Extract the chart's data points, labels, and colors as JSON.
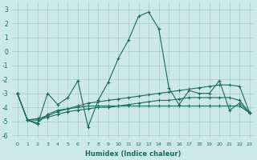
{
  "x": [
    0,
    1,
    2,
    3,
    4,
    5,
    6,
    7,
    8,
    9,
    10,
    11,
    12,
    13,
    14,
    15,
    16,
    17,
    18,
    19,
    20,
    21,
    22,
    23
  ],
  "line1": [
    -3.0,
    -4.9,
    -5.2,
    -3.0,
    -3.8,
    -3.3,
    -2.1,
    -5.4,
    -3.5,
    -2.2,
    -0.5,
    0.8,
    2.5,
    2.8,
    1.6,
    -2.6,
    -3.8,
    -2.8,
    -3.0,
    -3.0,
    -2.1,
    -4.2,
    -3.7,
    -4.4
  ],
  "line2": [
    -3.0,
    -4.9,
    -5.1,
    -4.5,
    -4.2,
    -4.1,
    -4.0,
    -3.9,
    -3.9,
    -3.9,
    -3.9,
    -3.9,
    -3.9,
    -3.9,
    -3.9,
    -3.9,
    -3.9,
    -3.9,
    -3.9,
    -3.9,
    -3.9,
    -3.9,
    -3.9,
    -4.4
  ],
  "line3": [
    -3.0,
    -4.9,
    -4.8,
    -4.6,
    -4.3,
    -4.1,
    -3.9,
    -3.7,
    -3.6,
    -3.5,
    -3.4,
    -3.3,
    -3.2,
    -3.1,
    -3.0,
    -2.9,
    -2.8,
    -2.7,
    -2.6,
    -2.5,
    -2.4,
    -2.4,
    -2.5,
    -4.4
  ],
  "line4": [
    -3.0,
    -4.9,
    -4.9,
    -4.7,
    -4.5,
    -4.3,
    -4.2,
    -4.1,
    -4.0,
    -4.0,
    -3.9,
    -3.8,
    -3.7,
    -3.6,
    -3.5,
    -3.5,
    -3.4,
    -3.3,
    -3.3,
    -3.3,
    -3.3,
    -3.3,
    -3.5,
    -4.4
  ],
  "line_color": "#1a6b5a",
  "bg_color": "#cce8e8",
  "grid_color": "#aacccc",
  "xlabel": "Humidex (Indice chaleur)",
  "xlim": [
    -0.5,
    23.5
  ],
  "ylim": [
    -6.2,
    3.5
  ],
  "yticks": [
    -6,
    -5,
    -4,
    -3,
    -2,
    -1,
    0,
    1,
    2,
    3
  ],
  "xticks": [
    0,
    1,
    2,
    3,
    4,
    5,
    6,
    7,
    8,
    9,
    10,
    11,
    12,
    13,
    14,
    15,
    16,
    17,
    18,
    19,
    20,
    21,
    22,
    23
  ]
}
